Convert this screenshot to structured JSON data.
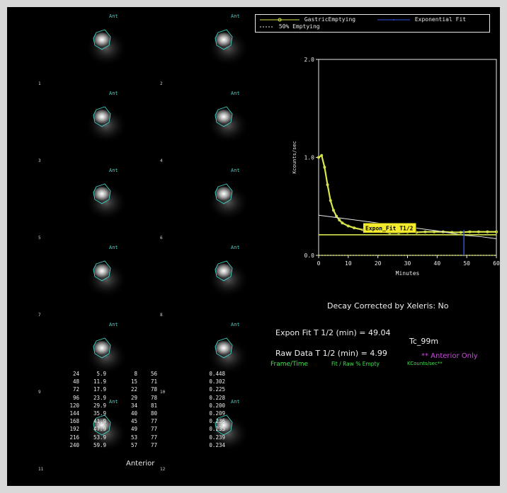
{
  "colors": {
    "background": "#000000",
    "roi": "#3fd7c8",
    "curve": "#d8e64a",
    "fit": "#e8e8e8",
    "accent_purple": "#c84ed8",
    "header_green": "#3ee04a"
  },
  "frames": [
    {
      "label": "Ant",
      "number": "1"
    },
    {
      "label": "Ant",
      "number": "2"
    },
    {
      "label": "Ant",
      "number": "3"
    },
    {
      "label": "Ant",
      "number": "4"
    },
    {
      "label": "Ant",
      "number": "5"
    },
    {
      "label": "Ant",
      "number": "6"
    },
    {
      "label": "Ant",
      "number": "7"
    },
    {
      "label": "Ant",
      "number": "8"
    },
    {
      "label": "Ant",
      "number": "9"
    },
    {
      "label": "Ant",
      "number": "10"
    },
    {
      "label": "Ant",
      "number": "11"
    },
    {
      "label": "Ant",
      "number": "12"
    }
  ],
  "view_label": "Anterior",
  "legend": {
    "series1": "GastricEmptying",
    "series2": "Exponential Fit",
    "series3": "50% Emptying"
  },
  "chart_data": {
    "type": "line",
    "xlabel": "Minutes",
    "ylabel": "Kcounts/sec",
    "xlim": [
      0,
      60
    ],
    "ylim": [
      0,
      2.0
    ],
    "x_ticks": [
      "0",
      "10",
      "20",
      "30",
      "40",
      "50",
      "60"
    ],
    "y_ticks": [
      "0.0",
      "1.0",
      "2.0"
    ],
    "annotation": "Expon_Fit T1/2",
    "series": [
      {
        "name": "GastricEmptying",
        "x": [
          0,
          1,
          2,
          3,
          4,
          5,
          6,
          7,
          8,
          10,
          12,
          15,
          18,
          21,
          24,
          27,
          30,
          33,
          36,
          39,
          42,
          45,
          48,
          51,
          54,
          57,
          60
        ],
        "y": [
          1.0,
          1.02,
          0.9,
          0.72,
          0.56,
          0.46,
          0.4,
          0.36,
          0.33,
          0.3,
          0.28,
          0.26,
          0.25,
          0.24,
          0.23,
          0.23,
          0.235,
          0.235,
          0.24,
          0.24,
          0.24,
          0.235,
          0.235,
          0.24,
          0.24,
          0.24,
          0.24
        ]
      },
      {
        "name": "Exponential Fit",
        "x": [
          0,
          10,
          20,
          30,
          40,
          49.04,
          55,
          60
        ],
        "y": [
          0.41,
          0.37,
          0.33,
          0.29,
          0.25,
          0.205,
          0.19,
          0.17
        ]
      },
      {
        "name": "50% Emptying",
        "x": [
          0,
          60
        ],
        "y": [
          0.21,
          0.21
        ]
      },
      {
        "name": "zero",
        "x": [
          0,
          60
        ],
        "y": [
          0.0,
          0.0
        ]
      }
    ],
    "markers": [
      {
        "x": 49.04,
        "y": 0.0
      }
    ]
  },
  "decay_corrected": "Decay Corrected by Xeleris: No",
  "expon_fit_half": "Expon Fit T 1/2 (min) = 49.04",
  "raw_data_half": "Raw Data T 1/2 (min) = 4.99",
  "isotope": "Tc_99m",
  "view_note": "** Anterior Only",
  "table": {
    "headers": [
      "Frame/Time",
      "Fit / Raw % Empty",
      "KCounts/sec**"
    ],
    "rows": [
      [
        "24",
        "5.9",
        "8",
        "56",
        "0.448"
      ],
      [
        "48",
        "11.9",
        "15",
        "71",
        "0.302"
      ],
      [
        "72",
        "17.9",
        "22",
        "78",
        "0.225"
      ],
      [
        "96",
        "23.9",
        "29",
        "78",
        "0.228"
      ],
      [
        "120",
        "29.9",
        "34",
        "81",
        "0.200"
      ],
      [
        "144",
        "35.9",
        "40",
        "80",
        "0.209"
      ],
      [
        "168",
        "41.9",
        "45",
        "77",
        "0.236"
      ],
      [
        "192",
        "47.9",
        "49",
        "77",
        "0.235"
      ],
      [
        "216",
        "53.9",
        "53",
        "77",
        "0.239"
      ],
      [
        "240",
        "59.9",
        "57",
        "77",
        "0.234"
      ]
    ]
  }
}
